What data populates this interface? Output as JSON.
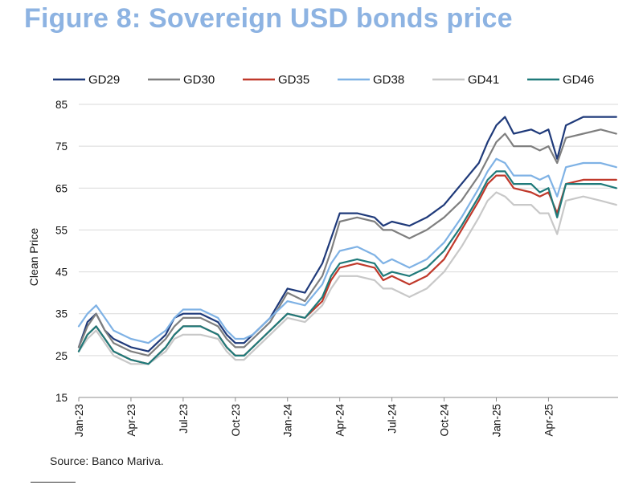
{
  "title": "Figure 8: Sovereign USD bonds price",
  "source": "Source: Banco Mariva.",
  "chart_data": {
    "type": "line",
    "title": "Figure 8: Sovereign USD bonds price",
    "xlabel": "",
    "ylabel": "Clean Price",
    "ylim": [
      15,
      85
    ],
    "yticks": [
      15,
      25,
      35,
      45,
      55,
      65,
      75,
      85
    ],
    "xlim": [
      0,
      31
    ],
    "xticks": [
      {
        "label": "Jan-23",
        "x": 0
      },
      {
        "label": "Apr-23",
        "x": 3
      },
      {
        "label": "Jul-23",
        "x": 6
      },
      {
        "label": "Oct-23",
        "x": 9
      },
      {
        "label": "Jan-24",
        "x": 12
      },
      {
        "label": "Apr-24",
        "x": 15
      },
      {
        "label": "Jul-24",
        "x": 18
      },
      {
        "label": "Oct-24",
        "x": 21
      },
      {
        "label": "Jan-25",
        "x": 24
      },
      {
        "label": "Apr-25",
        "x": 27
      }
    ],
    "grid": "horizontal",
    "legend": "top",
    "x": [
      0,
      0.5,
      1,
      1.5,
      2,
      3,
      4,
      5,
      5.5,
      6,
      7,
      8,
      8.5,
      9,
      9.5,
      10,
      10.5,
      11,
      12,
      13,
      14,
      14.5,
      15,
      16,
      17,
      17.5,
      18,
      19,
      20,
      21,
      22,
      23,
      23.5,
      24,
      24.5,
      25,
      26,
      26.5,
      27,
      27.5,
      28,
      29,
      30,
      30.9
    ],
    "series": [
      {
        "name": "GD29",
        "color": "#1f3a7a",
        "values": [
          27,
          33,
          35,
          31,
          29,
          27,
          26,
          30,
          34,
          35,
          35,
          33,
          30,
          28,
          28,
          30,
          32,
          34,
          41,
          40,
          47,
          53,
          59,
          59,
          58,
          56,
          57,
          56,
          58,
          61,
          66,
          71,
          76,
          80,
          82,
          78,
          79,
          78,
          79,
          72,
          80,
          82,
          82,
          82
        ]
      },
      {
        "name": "GD30",
        "color": "#7f7f7f",
        "values": [
          27,
          32,
          35,
          31,
          28,
          26,
          25,
          29,
          32,
          34,
          34,
          32,
          29,
          27,
          27,
          29,
          31,
          33,
          40,
          38,
          44,
          50,
          57,
          58,
          57,
          55,
          55,
          53,
          55,
          58,
          62,
          68,
          72,
          76,
          78,
          75,
          75,
          74,
          75,
          71,
          77,
          78,
          79,
          78
        ]
      },
      {
        "name": "GD35",
        "color": "#c0392b",
        "values": [
          26,
          30,
          32,
          29,
          26,
          24,
          23,
          27,
          30,
          32,
          32,
          30,
          27,
          25,
          25,
          27,
          29,
          31,
          35,
          34,
          38,
          43,
          46,
          47,
          46,
          43,
          44,
          42,
          44,
          48,
          55,
          62,
          66,
          68,
          68,
          65,
          64,
          63,
          64,
          59,
          66,
          67,
          67,
          67
        ]
      },
      {
        "name": "GD38",
        "color": "#7fb2e5",
        "values": [
          32,
          35,
          37,
          34,
          31,
          29,
          28,
          31,
          34,
          36,
          36,
          34,
          31,
          29,
          29,
          30,
          32,
          34,
          38,
          37,
          42,
          47,
          50,
          51,
          49,
          47,
          48,
          46,
          48,
          52,
          58,
          65,
          69,
          72,
          71,
          68,
          68,
          67,
          68,
          63,
          70,
          71,
          71,
          70
        ]
      },
      {
        "name": "GD41",
        "color": "#c8c8c8",
        "values": [
          26,
          29,
          31,
          28,
          25,
          23,
          23,
          26,
          29,
          30,
          30,
          29,
          26,
          24,
          24,
          26,
          28,
          30,
          34,
          33,
          37,
          41,
          44,
          44,
          43,
          41,
          41,
          39,
          41,
          45,
          51,
          58,
          62,
          64,
          63,
          61,
          61,
          59,
          59,
          54,
          62,
          63,
          62,
          61
        ]
      },
      {
        "name": "GD46",
        "color": "#1f7a7a",
        "values": [
          26,
          30,
          32,
          29,
          26,
          24,
          23,
          27,
          30,
          32,
          32,
          30,
          27,
          25,
          25,
          27,
          29,
          31,
          35,
          34,
          39,
          44,
          47,
          48,
          47,
          44,
          45,
          44,
          46,
          50,
          56,
          63,
          67,
          69,
          69,
          66,
          66,
          64,
          65,
          58,
          66,
          66,
          66,
          65
        ]
      }
    ]
  }
}
